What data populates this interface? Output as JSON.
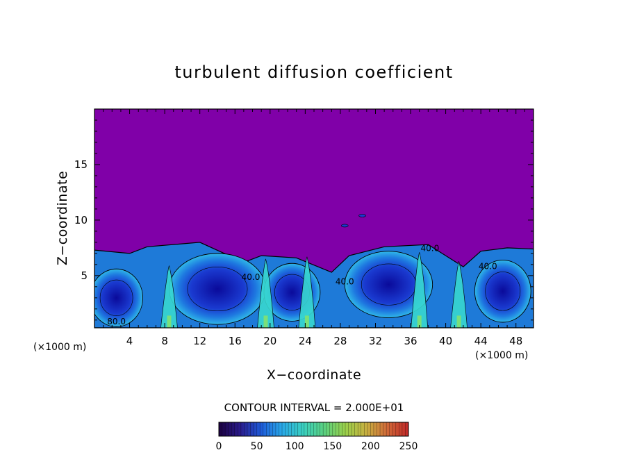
{
  "chart_data": {
    "type": "heatmap",
    "title": "turbulent diffusion coefficient",
    "xlabel": "X−coordinate",
    "ylabel": "Z−coordinate",
    "x_unit_left": "(×1000 m)",
    "x_unit_right": "(×1000 m)",
    "xlim": [
      0,
      50
    ],
    "ylim": [
      0.3,
      20
    ],
    "x_ticks": [
      4,
      8,
      12,
      16,
      20,
      24,
      28,
      32,
      36,
      40,
      44,
      48
    ],
    "x_tick_labels": [
      "4",
      "8",
      "12",
      "16",
      "20",
      "24",
      "28",
      "32",
      "36",
      "40",
      "44",
      "48"
    ],
    "y_ticks": [
      5,
      10,
      15
    ],
    "y_tick_labels": [
      "5",
      "10",
      "15"
    ],
    "contour_interval_text": "CONTOUR INTERVAL = 2.000E+01",
    "contour_labels": [
      {
        "text": "80.0",
        "x": 2.5,
        "z": 0.6
      },
      {
        "text": "40.0",
        "x": 17.8,
        "z": 4.6
      },
      {
        "text": "40.0",
        "x": 28.5,
        "z": 4.2
      },
      {
        "text": "40.0",
        "x": 38.2,
        "z": 7.2
      },
      {
        "text": "40.0",
        "x": 44.8,
        "z": 5.6
      }
    ],
    "colorbar": {
      "min": 0,
      "max": 250,
      "ticks": [
        0,
        50,
        100,
        150,
        200,
        250
      ],
      "tick_labels": [
        "0",
        "50",
        "100",
        "150",
        "200",
        "250"
      ],
      "colors": [
        "#1a0040",
        "#2a1a8a",
        "#1e5ad8",
        "#28a8e8",
        "#3ad0c0",
        "#5ad080",
        "#9ad04a",
        "#c8b040",
        "#d06838",
        "#c02828"
      ]
    },
    "field_background_color": "#8000a8",
    "turbulent_layer_top_z": 7.8,
    "cells": [
      {
        "x": 2.5,
        "z": 3.0,
        "rx": 3.0,
        "rz": 2.6,
        "value": 20
      },
      {
        "x": 14.0,
        "z": 3.8,
        "rx": 5.5,
        "rz": 3.2,
        "value": 15
      },
      {
        "x": 22.5,
        "z": 3.5,
        "rx": 3.2,
        "rz": 2.6,
        "value": 35
      },
      {
        "x": 33.5,
        "z": 4.2,
        "rx": 5.0,
        "rz": 3.0,
        "value": 15
      },
      {
        "x": 46.5,
        "z": 3.6,
        "rx": 3.2,
        "rz": 2.8,
        "value": 20
      }
    ]
  }
}
